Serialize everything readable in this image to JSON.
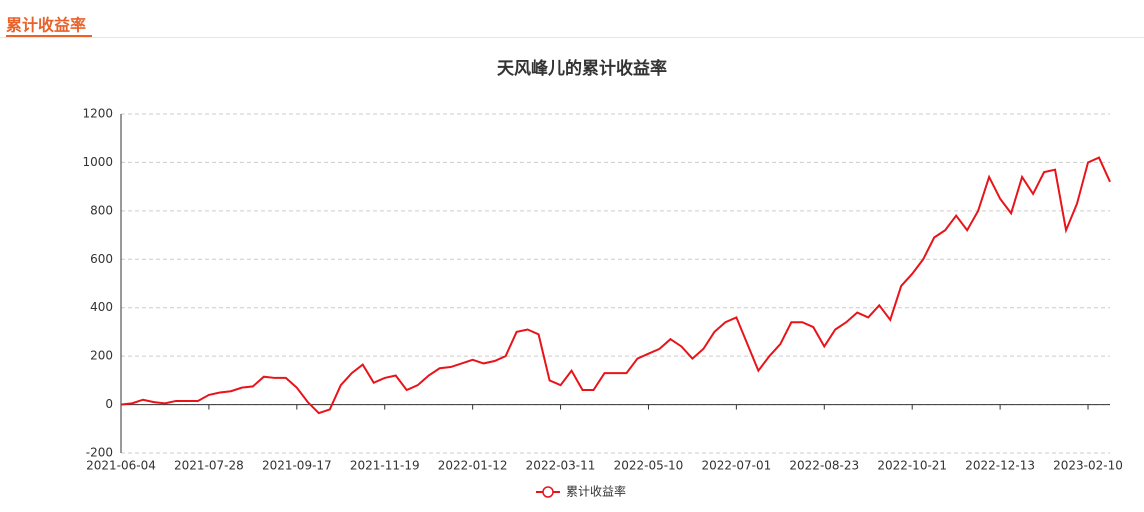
{
  "header": "累计收益率",
  "chart_data": {
    "type": "line",
    "title": "天风峰儿的累计收益率",
    "categories": [
      "2021-06-04",
      null,
      null,
      null,
      null,
      null,
      null,
      null,
      "2021-07-28",
      null,
      null,
      null,
      null,
      null,
      null,
      null,
      "2021-09-17",
      null,
      null,
      null,
      null,
      null,
      null,
      null,
      "2021-11-19",
      null,
      null,
      null,
      null,
      null,
      null,
      null,
      "2022-01-12",
      null,
      null,
      null,
      null,
      null,
      null,
      null,
      "2022-03-11",
      null,
      null,
      null,
      null,
      null,
      null,
      null,
      "2022-05-10",
      null,
      null,
      null,
      null,
      null,
      null,
      null,
      "2022-07-01",
      null,
      null,
      null,
      null,
      null,
      null,
      null,
      "2022-08-23",
      null,
      null,
      null,
      null,
      null,
      null,
      null,
      "2022-10-21",
      null,
      null,
      null,
      null,
      null,
      null,
      null,
      "2022-12-13",
      null,
      null,
      null,
      null,
      null,
      null,
      null,
      "2023-02-10",
      null,
      null
    ],
    "series": [
      {
        "name": "累计收益率",
        "color": "#e8141a",
        "values": [
          0,
          5,
          20,
          10,
          5,
          15,
          15,
          15,
          40,
          50,
          55,
          70,
          75,
          115,
          110,
          110,
          70,
          10,
          -35,
          -20,
          80,
          130,
          165,
          90,
          110,
          120,
          60,
          80,
          120,
          150,
          155,
          170,
          185,
          170,
          180,
          200,
          300,
          310,
          290,
          100,
          80,
          140,
          60,
          60,
          130,
          130,
          130,
          190,
          210,
          230,
          270,
          240,
          190,
          230,
          300,
          340,
          360,
          250,
          140,
          200,
          250,
          340,
          340,
          320,
          240,
          310,
          340,
          380,
          360,
          410,
          350,
          490,
          540,
          600,
          690,
          720,
          780,
          720,
          800,
          940,
          850,
          790,
          940,
          870,
          960,
          970,
          720,
          830,
          1000,
          1020,
          920
        ]
      }
    ],
    "ylim": [
      -200,
      1200
    ],
    "yticks": [
      -200,
      0,
      200,
      400,
      600,
      800,
      1000,
      1200
    ],
    "grid": true
  }
}
